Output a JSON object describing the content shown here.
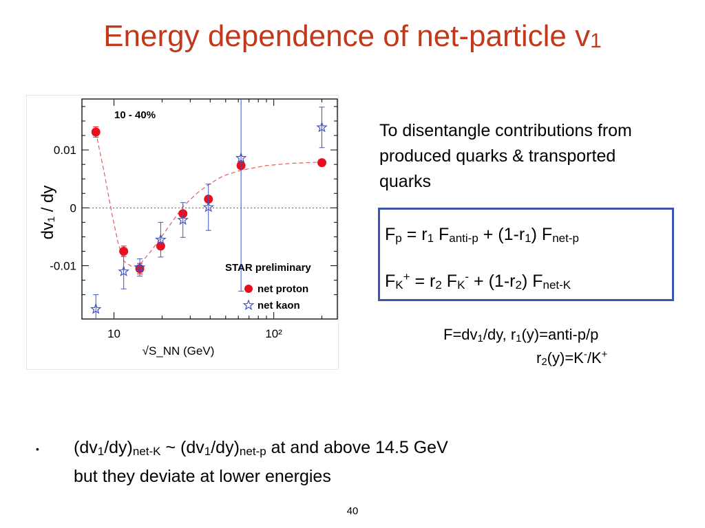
{
  "slide": {
    "title_main": "Energy dependence of net-particle v",
    "title_sub": "1",
    "note_lines": [
      "To disentangle contributions from",
      "produced quarks & transported",
      "quarks"
    ],
    "eq1": {
      "a": "F",
      "b": "p",
      "c": " = r",
      "d": "1",
      "e": " F",
      "f": "anti-p",
      "g": " + (1-r",
      "h": "1",
      "i": ") F",
      "j": "net-p"
    },
    "eq2": {
      "a": "F",
      "b": "K",
      "c": "+",
      "d": " = r",
      "e": "2",
      "f": " F",
      "g": "K",
      "h": "-",
      "i": " + (1-r",
      "j": "2",
      "k": ") F",
      "l": "net-K"
    },
    "def1": {
      "a": "F=dv",
      "b": "1",
      "c": "/dy,  r",
      "d": "1",
      "e": "(y)=anti-p/p"
    },
    "def2": {
      "a": "r",
      "b": "2",
      "c": "(y)=K",
      "d": "-",
      "e": "/K",
      "f": "+"
    },
    "bullet_symbol": "•",
    "bullet_line1": {
      "a": "(dv",
      "b": "1",
      "c": "/dy)",
      "d": "net-K",
      "e": " ~ (dv",
      "f": "1",
      "g": "/dy)",
      "h": "net-p",
      "i": " at and above 14.5 GeV"
    },
    "bullet_line2": "but they deviate at lower energies",
    "page_number": "40"
  },
  "chart_data": {
    "type": "scatter",
    "panel_label": "10 - 40%",
    "watermark": "STAR preliminary",
    "xlabel": "√S_NN (GeV)",
    "ylabel": "dv₁ / dy",
    "xscale": "log",
    "xlim": [
      6.3,
      250
    ],
    "ylim": [
      -0.0192,
      0.0188
    ],
    "x_tick_labels": [
      {
        "v": 10,
        "t": "10"
      },
      {
        "v": 100,
        "t": "10²"
      }
    ],
    "y_tick_labels": [
      {
        "v": 0.01,
        "t": "0.01"
      },
      {
        "v": 0,
        "t": "0"
      },
      {
        "v": -0.01,
        "t": "-0.01"
      }
    ],
    "legend_placement": "bottom-right",
    "colors": {
      "proton": "#e8101d",
      "kaon": "#3d52c8",
      "fit": "#e85a5a"
    },
    "series": [
      {
        "name": "net proton",
        "marker": "circle",
        "points": [
          {
            "x": 7.7,
            "y": 0.0131,
            "err": 0.0009
          },
          {
            "x": 11.5,
            "y": -0.0075,
            "err": 0.0009
          },
          {
            "x": 14.5,
            "y": -0.0105,
            "err": 0.0009
          },
          {
            "x": 19.6,
            "y": -0.0066,
            "err": 0.0006
          },
          {
            "x": 27,
            "y": -0.001,
            "err": 0.0005
          },
          {
            "x": 39,
            "y": 0.0015,
            "err": 0.0006
          },
          {
            "x": 62.4,
            "y": 0.0073,
            "err": 0.0005
          },
          {
            "x": 200,
            "y": 0.0078,
            "err": 0.0005
          }
        ]
      },
      {
        "name": "net kaon",
        "marker": "star",
        "points": [
          {
            "x": 7.7,
            "y": -0.0175,
            "err": 0.0025
          },
          {
            "x": 11.5,
            "y": -0.011,
            "err": 0.003
          },
          {
            "x": 14.5,
            "y": -0.0103,
            "err": 0.0015
          },
          {
            "x": 19.6,
            "y": -0.0055,
            "err": 0.003
          },
          {
            "x": 27,
            "y": -0.0021,
            "err": 0.003
          },
          {
            "x": 39,
            "y": 0.0001,
            "err": 0.004
          },
          {
            "x": 62.4,
            "y": 0.0086,
            "err": 0.023
          },
          {
            "x": 200,
            "y": 0.0139,
            "err": 0.0035
          }
        ]
      }
    ],
    "fit_curve": [
      {
        "x": 7.7,
        "y": 0.0131
      },
      {
        "x": 8.7,
        "y": 0.006
      },
      {
        "x": 9.7,
        "y": -0.001
      },
      {
        "x": 10.6,
        "y": -0.006
      },
      {
        "x": 11.5,
        "y": -0.0092
      },
      {
        "x": 13,
        "y": -0.0102
      },
      {
        "x": 14.5,
        "y": -0.0098
      },
      {
        "x": 17,
        "y": -0.0075
      },
      {
        "x": 19.6,
        "y": -0.0052
      },
      {
        "x": 23,
        "y": -0.0025
      },
      {
        "x": 27,
        "y": 0.0002
      },
      {
        "x": 33,
        "y": 0.0025
      },
      {
        "x": 39,
        "y": 0.004
      },
      {
        "x": 48,
        "y": 0.0055
      },
      {
        "x": 62.4,
        "y": 0.0065
      },
      {
        "x": 90,
        "y": 0.0073
      },
      {
        "x": 130,
        "y": 0.0077
      },
      {
        "x": 200,
        "y": 0.0079
      }
    ]
  }
}
